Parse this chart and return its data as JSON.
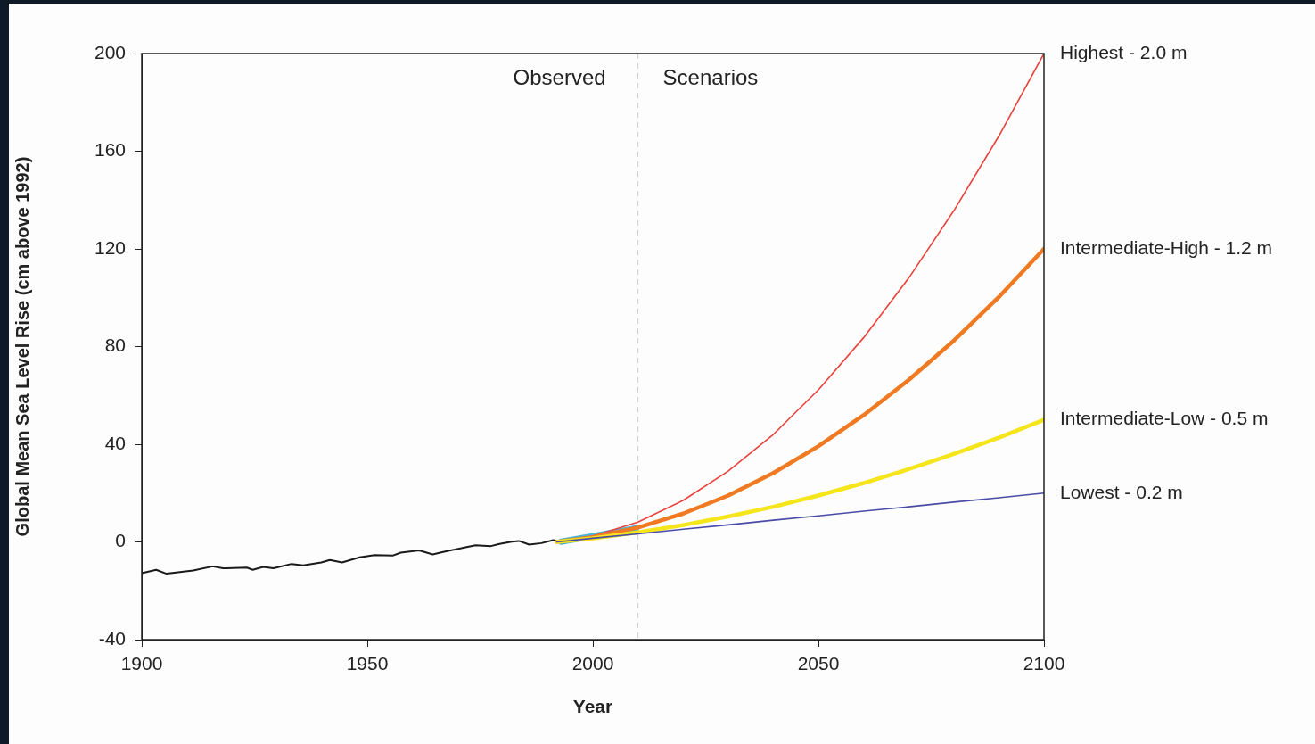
{
  "chart_data": {
    "type": "line",
    "xlabel": "Year",
    "ylabel": "Global Mean Sea Level Rise (cm above 1992)",
    "xlim": [
      1900,
      2100
    ],
    "xticks": [
      1900,
      1950,
      2000,
      2050,
      2100
    ],
    "ylim": [
      -40,
      200
    ],
    "yticks": [
      -40,
      0,
      40,
      80,
      120,
      160,
      200
    ],
    "grid": false,
    "legend": false,
    "marker": "none",
    "ref_lines": [
      {
        "axis": "x",
        "value": 2010,
        "color": "#cccccc",
        "line_style": "dashed"
      }
    ],
    "annotations": [
      "Observed",
      "Scenarios"
    ],
    "series": [
      {
        "color": "#1a1a1a",
        "x": [
          1900.2,
          1903.2,
          1905.5,
          1911.4,
          1915.7,
          1918,
          1923.3,
          1924.6,
          1926.9,
          1929.2,
          1933.2,
          1935.8,
          1939.8,
          1941.7,
          1944.4,
          1948.3,
          1951.6,
          1955.6,
          1957.4,
          1961.5,
          1964.5,
          1966.8,
          1972,
          1974,
          1977.4,
          1979.3,
          1982,
          1983.6,
          1985.9,
          1988.6,
          1991.2,
          1992.5
        ],
        "values": [
          -12.7,
          -11.4,
          -13,
          -11.7,
          -10,
          -10.8,
          -10.5,
          -11.4,
          -10.2,
          -10.8,
          -9,
          -9.6,
          -8.4,
          -7.4,
          -8.4,
          -6.3,
          -5.4,
          -5.6,
          -4.4,
          -3.5,
          -5.1,
          -4.1,
          -2.1,
          -1.4,
          -1.7,
          -0.8,
          0.1,
          0.4,
          -1.1,
          -0.5,
          0.7,
          0.3
        ]
      },
      {
        "color": "#4bb4d4",
        "x": [
          1993,
          1997,
          2001,
          2005,
          2009.6
        ],
        "values": [
          0.1,
          1.4,
          2.7,
          4,
          5.6
        ]
      },
      {
        "name": "Highest - 2.0 m",
        "color": "#e8423a",
        "x": [
          1992,
          2000,
          2010,
          2020,
          2030,
          2040,
          2050,
          2060,
          2070,
          2080,
          2090,
          2100
        ],
        "values": [
          0,
          2.4,
          8.1,
          17,
          29,
          44,
          62.3,
          83.6,
          108,
          135.6,
          166.2,
          200
        ]
      },
      {
        "name": "Intermediate-High - 1.2 m",
        "color": "#f07a22",
        "x": [
          1992,
          2000,
          2010,
          2020,
          2030,
          2040,
          2050,
          2060,
          2070,
          2080,
          2090,
          2100
        ],
        "values": [
          0,
          1.9,
          5.9,
          11.6,
          19,
          28.2,
          39.2,
          51.9,
          66.3,
          82.4,
          100.3,
          120
        ]
      },
      {
        "name": "Intermediate-Low - 0.5 m",
        "color": "#f5e51b",
        "x": [
          1992,
          2000,
          2010,
          2020,
          2030,
          2040,
          2050,
          2060,
          2070,
          2080,
          2090,
          2100
        ],
        "values": [
          0,
          1.5,
          3.9,
          6.9,
          10.4,
          14.4,
          19,
          24.1,
          29.8,
          36,
          42.7,
          50
        ]
      },
      {
        "name": "Lowest - 0.2 m",
        "color": "#4a4aa8",
        "x": [
          1992,
          2000,
          2010,
          2020,
          2030,
          2040,
          2050,
          2060,
          2070,
          2080,
          2090,
          2100
        ],
        "values": [
          0,
          1.5,
          3.3,
          5.2,
          7,
          8.9,
          10.7,
          12.6,
          14.4,
          16.3,
          18.1,
          20
        ]
      }
    ]
  }
}
